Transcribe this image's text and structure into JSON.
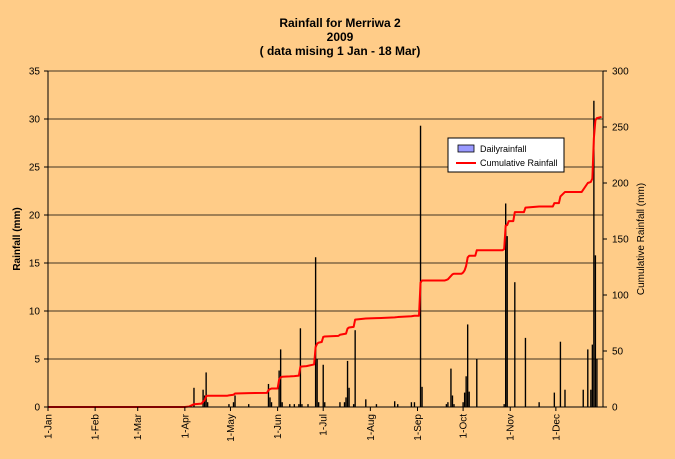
{
  "chart_data": {
    "type": "bar",
    "title_lines": [
      "Rainfall  for Merriwa 2",
      "2009",
      "( data mising 1 Jan - 18 Mar)"
    ],
    "ylabel": "Rainfall (mm)",
    "y2label": "Cumulative Rainfall (mm)",
    "ylim": [
      0,
      35
    ],
    "y_ticks": [
      0,
      5,
      10,
      15,
      20,
      25,
      30,
      35
    ],
    "y2lim": [
      0,
      300
    ],
    "y2_ticks": [
      0,
      50,
      100,
      150,
      200,
      250,
      300
    ],
    "x_tick_labels": [
      "1-Jan",
      "1-Feb",
      "1-Mar",
      "1-Apr",
      "1-May",
      "1-Jun",
      "1-Jul",
      "1-Aug",
      "1-Sep",
      "1-Oct",
      "1-Nov",
      "1-Dec"
    ],
    "x_tick_days": [
      0,
      31,
      59,
      90,
      120,
      151,
      181,
      212,
      243,
      273,
      304,
      334
    ],
    "grid": true,
    "legend_position": "upper-right",
    "series": [
      {
        "name": "Dailyrainfall",
        "color": "#000000",
        "points": [
          [
            96,
            2.0
          ],
          [
            102,
            1.8
          ],
          [
            103,
            1.2
          ],
          [
            104,
            3.6
          ],
          [
            105,
            0.5
          ],
          [
            119,
            0.3
          ],
          [
            122,
            0.5
          ],
          [
            123,
            1.2
          ],
          [
            132,
            0.3
          ],
          [
            145,
            2.4
          ],
          [
            146,
            1.0
          ],
          [
            147,
            0.5
          ],
          [
            152,
            3.8
          ],
          [
            153,
            6.0
          ],
          [
            154,
            0.5
          ],
          [
            159,
            0.3
          ],
          [
            162,
            0.3
          ],
          [
            165,
            0.3
          ],
          [
            166,
            8.2
          ],
          [
            167,
            0.3
          ],
          [
            171,
            0.3
          ],
          [
            176,
            15.6
          ],
          [
            177,
            5.0
          ],
          [
            178,
            0.5
          ],
          [
            181,
            4.4
          ],
          [
            182,
            0.5
          ],
          [
            192,
            0.5
          ],
          [
            195,
            0.5
          ],
          [
            196,
            1.0
          ],
          [
            197,
            4.8
          ],
          [
            198,
            2.0
          ],
          [
            201,
            0.3
          ],
          [
            202,
            8.0
          ],
          [
            209,
            0.8
          ],
          [
            216,
            0.3
          ],
          [
            228,
            0.6
          ],
          [
            230,
            0.3
          ],
          [
            239,
            0.5
          ],
          [
            241,
            0.5
          ],
          [
            245,
            29.3
          ],
          [
            246,
            2.1
          ],
          [
            262,
            0.3
          ],
          [
            263,
            0.5
          ],
          [
            265,
            4.0
          ],
          [
            266,
            1.2
          ],
          [
            267,
            0.3
          ],
          [
            273,
            0.5
          ],
          [
            274,
            1.5
          ],
          [
            275,
            3.2
          ],
          [
            276,
            8.6
          ],
          [
            277,
            1.6
          ],
          [
            282,
            5.0
          ],
          [
            300,
            0.3
          ],
          [
            301,
            21.2
          ],
          [
            302,
            17.8
          ],
          [
            307,
            13.0
          ],
          [
            314,
            7.2
          ],
          [
            323,
            0.5
          ],
          [
            333,
            1.5
          ],
          [
            337,
            6.8
          ],
          [
            340,
            1.8
          ],
          [
            352,
            1.8
          ],
          [
            355,
            6.0
          ],
          [
            357,
            1.8
          ],
          [
            358,
            6.5
          ],
          [
            359,
            31.9
          ],
          [
            360,
            15.8
          ],
          [
            361,
            5.0
          ]
        ]
      },
      {
        "name": "Cumulative Rainfall",
        "color": "#FF0000",
        "points": [
          [
            0,
            0
          ],
          [
            90,
            0
          ],
          [
            93,
            0.5
          ],
          [
            96,
            2.5
          ],
          [
            101,
            3
          ],
          [
            102,
            4.8
          ],
          [
            103,
            6
          ],
          [
            104,
            9.6
          ],
          [
            105,
            10.1
          ],
          [
            118,
            10.1
          ],
          [
            119,
            10.4
          ],
          [
            122,
            10.9
          ],
          [
            123,
            12.1
          ],
          [
            132,
            12.4
          ],
          [
            144,
            12.6
          ],
          [
            145,
            15
          ],
          [
            146,
            16
          ],
          [
            147,
            16.5
          ],
          [
            151,
            16.5
          ],
          [
            152,
            24.5
          ],
          [
            153,
            26.5
          ],
          [
            154,
            27
          ],
          [
            159,
            27.3
          ],
          [
            162,
            27.6
          ],
          [
            165,
            28
          ],
          [
            166,
            36
          ],
          [
            170,
            36.5
          ],
          [
            175,
            38
          ],
          [
            176,
            53.5
          ],
          [
            177,
            56.5
          ],
          [
            178,
            57.5
          ],
          [
            180,
            58
          ],
          [
            181,
            62.5
          ],
          [
            182,
            63
          ],
          [
            191,
            63.5
          ],
          [
            192,
            64.5
          ],
          [
            196,
            65.5
          ],
          [
            197,
            70
          ],
          [
            198,
            71
          ],
          [
            201,
            71.5
          ],
          [
            202,
            78
          ],
          [
            209,
            79
          ],
          [
            216,
            79.3
          ],
          [
            228,
            80
          ],
          [
            230,
            80.3
          ],
          [
            239,
            81
          ],
          [
            241,
            81.5
          ],
          [
            244,
            81.5
          ],
          [
            245,
            111
          ],
          [
            246,
            113
          ],
          [
            261,
            113
          ],
          [
            262,
            113.5
          ],
          [
            263,
            114
          ],
          [
            265,
            117
          ],
          [
            266,
            118.5
          ],
          [
            267,
            119
          ],
          [
            272,
            119
          ],
          [
            273,
            120
          ],
          [
            274,
            122
          ],
          [
            275,
            126
          ],
          [
            276,
            133.5
          ],
          [
            277,
            135
          ],
          [
            281,
            135
          ],
          [
            282,
            140
          ],
          [
            299,
            140
          ],
          [
            300,
            141
          ],
          [
            301,
            162
          ],
          [
            302,
            162.5
          ],
          [
            303,
            166
          ],
          [
            306,
            166
          ],
          [
            307,
            174
          ],
          [
            313,
            174
          ],
          [
            314,
            178
          ],
          [
            323,
            179
          ],
          [
            332,
            179
          ],
          [
            333,
            182
          ],
          [
            336,
            182
          ],
          [
            337,
            188
          ],
          [
            340,
            192
          ],
          [
            351,
            192
          ],
          [
            352,
            194
          ],
          [
            355,
            200
          ],
          [
            357,
            201
          ],
          [
            358,
            204
          ],
          [
            359,
            240
          ],
          [
            360,
            256
          ],
          [
            361,
            258
          ],
          [
            364,
            259
          ]
        ]
      }
    ]
  }
}
